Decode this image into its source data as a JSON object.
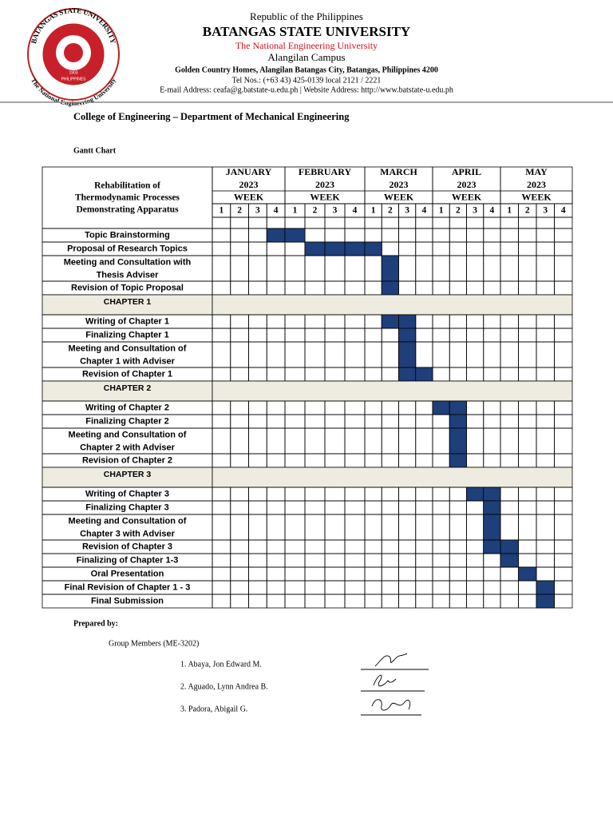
{
  "header": {
    "republic": "Republic of the Philippines",
    "university": "BATANGAS STATE UNIVERSITY",
    "tagline": "The National Engineering University",
    "campus": "Alangilan Campus",
    "address": "Golden Country Homes, Alangilan Batangas City, Batangas, Philippines 4200",
    "tel": "Tel Nos.: (+63 43) 425-0139 local 2121 / 2221",
    "contact": "E-mail Address: ceafa@g.batstate-u.edu.ph | Website Address: http://www.batstate-u.edu.ph"
  },
  "logo": {
    "top": "BATANGAS STATE UNIVERSITY",
    "bottom": "The National Engineering University",
    "year": "1903",
    "country": "PHILIPPINES"
  },
  "college": "College of Engineering – Department of Mechanical Engineering",
  "section_title": "Gantt Chart",
  "table": {
    "project": [
      "Rehabilitation of",
      "Thermodynamic Processes",
      "Demonstrating Apparatus"
    ],
    "months": [
      {
        "name": "JANUARY",
        "year": "2023",
        "week_label": "WEEK",
        "weeks": [
          1,
          2,
          3,
          4
        ]
      },
      {
        "name": "FEBRUARY",
        "year": "2023",
        "week_label": "WEEK",
        "weeks": [
          1,
          2,
          3,
          4
        ]
      },
      {
        "name": "MARCH",
        "year": "2023",
        "week_label": "WEEK",
        "weeks": [
          1,
          2,
          3,
          4
        ]
      },
      {
        "name": "APRIL",
        "year": "2023",
        "week_label": "WEEK",
        "weeks": [
          1,
          2,
          3,
          4
        ]
      },
      {
        "name": "MAY",
        "year": "2023",
        "week_label": "WEEK",
        "weeks": [
          1,
          2,
          3,
          4
        ]
      }
    ],
    "rows": [
      {
        "lines": [
          "Topic Brainstorming"
        ],
        "filled": [
          3,
          4
        ]
      },
      {
        "lines": [
          "Proposal of Research Topics"
        ],
        "filled": [
          5,
          6,
          7,
          8
        ]
      },
      {
        "lines": [
          "Meeting and Consultation with",
          "Thesis Adviser"
        ],
        "filled": [
          9
        ]
      },
      {
        "lines": [
          "Revision of Topic Proposal"
        ],
        "filled": [
          9
        ]
      },
      {
        "section": "CHAPTER 1"
      },
      {
        "lines": [
          "Writing of Chapter 1"
        ],
        "filled": [
          9,
          10
        ]
      },
      {
        "lines": [
          "Finalizing Chapter 1"
        ],
        "filled": [
          10
        ]
      },
      {
        "lines": [
          "Meeting and Consultation of",
          "Chapter 1 with Adviser"
        ],
        "filled": [
          10
        ]
      },
      {
        "lines": [
          "Revision of Chapter 1"
        ],
        "filled": [
          10,
          11
        ]
      },
      {
        "section": "CHAPTER 2"
      },
      {
        "lines": [
          "Writing of Chapter 2"
        ],
        "filled": [
          12,
          13
        ]
      },
      {
        "lines": [
          "Finalizing Chapter 2"
        ],
        "filled": [
          13
        ]
      },
      {
        "lines": [
          "Meeting and Consultation of",
          "Chapter 2 with Adviser"
        ],
        "filled": [
          13
        ]
      },
      {
        "lines": [
          "Revision of Chapter 2"
        ],
        "filled": [
          13
        ]
      },
      {
        "section": "CHAPTER 3"
      },
      {
        "lines": [
          "Writing of Chapter 3"
        ],
        "filled": [
          14,
          15
        ]
      },
      {
        "lines": [
          "Finalizing Chapter 3"
        ],
        "filled": [
          15
        ]
      },
      {
        "lines": [
          "Meeting and Consultation of",
          "Chapter 3 with Adviser"
        ],
        "filled": [
          15
        ]
      },
      {
        "lines": [
          "Revision of Chapter 3"
        ],
        "filled": [
          15,
          16
        ]
      },
      {
        "lines": [
          "Finalizing of Chapter 1-3"
        ],
        "filled": [
          16
        ]
      },
      {
        "lines": [
          "Oral Presentation"
        ],
        "filled": [
          17
        ]
      },
      {
        "lines": [
          "Final Revision of Chapter 1 - 3"
        ],
        "filled": [
          18
        ]
      },
      {
        "lines": [
          "Final Submission"
        ],
        "filled": [
          18
        ]
      }
    ]
  },
  "prepared": {
    "label": "Prepared by:",
    "group": "Group Members (ME-3202)",
    "members": [
      "1. Abaya, Jon Edward M.",
      "2. Aguado, Lynn Andrea B.",
      "3. Padora, Abigail G."
    ]
  }
}
